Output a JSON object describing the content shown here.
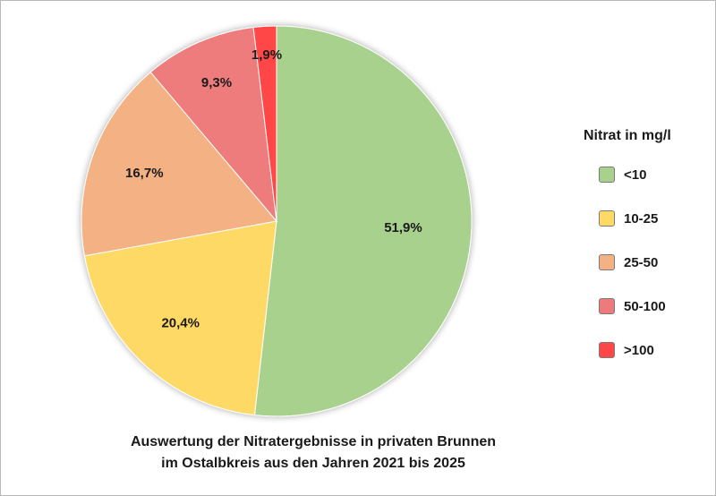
{
  "chart_data": {
    "type": "pie",
    "title_lines": [
      "Auswertung der Nitratergebnisse in privaten Brunnen",
      "im Ostalbkreis aus den Jahren 2021 bis 2025"
    ],
    "legend_title": "Nitrat in mg/l",
    "legend_placement": "right",
    "slices": [
      {
        "category": "<10",
        "value": 51.9,
        "label": "51,9%",
        "color": "#a9d18e"
      },
      {
        "category": "10-25",
        "value": 20.4,
        "label": "20,4%",
        "color": "#ffd966"
      },
      {
        "category": "25-50",
        "value": 16.7,
        "label": "16,7%",
        "color": "#f4b183"
      },
      {
        "category": "50-100",
        "value": 9.3,
        "label": "9,3%",
        "color": "#ee7b7b"
      },
      {
        "category": ">100",
        "value": 1.9,
        "label": "1,9%",
        "color": "#ff4747"
      }
    ]
  }
}
